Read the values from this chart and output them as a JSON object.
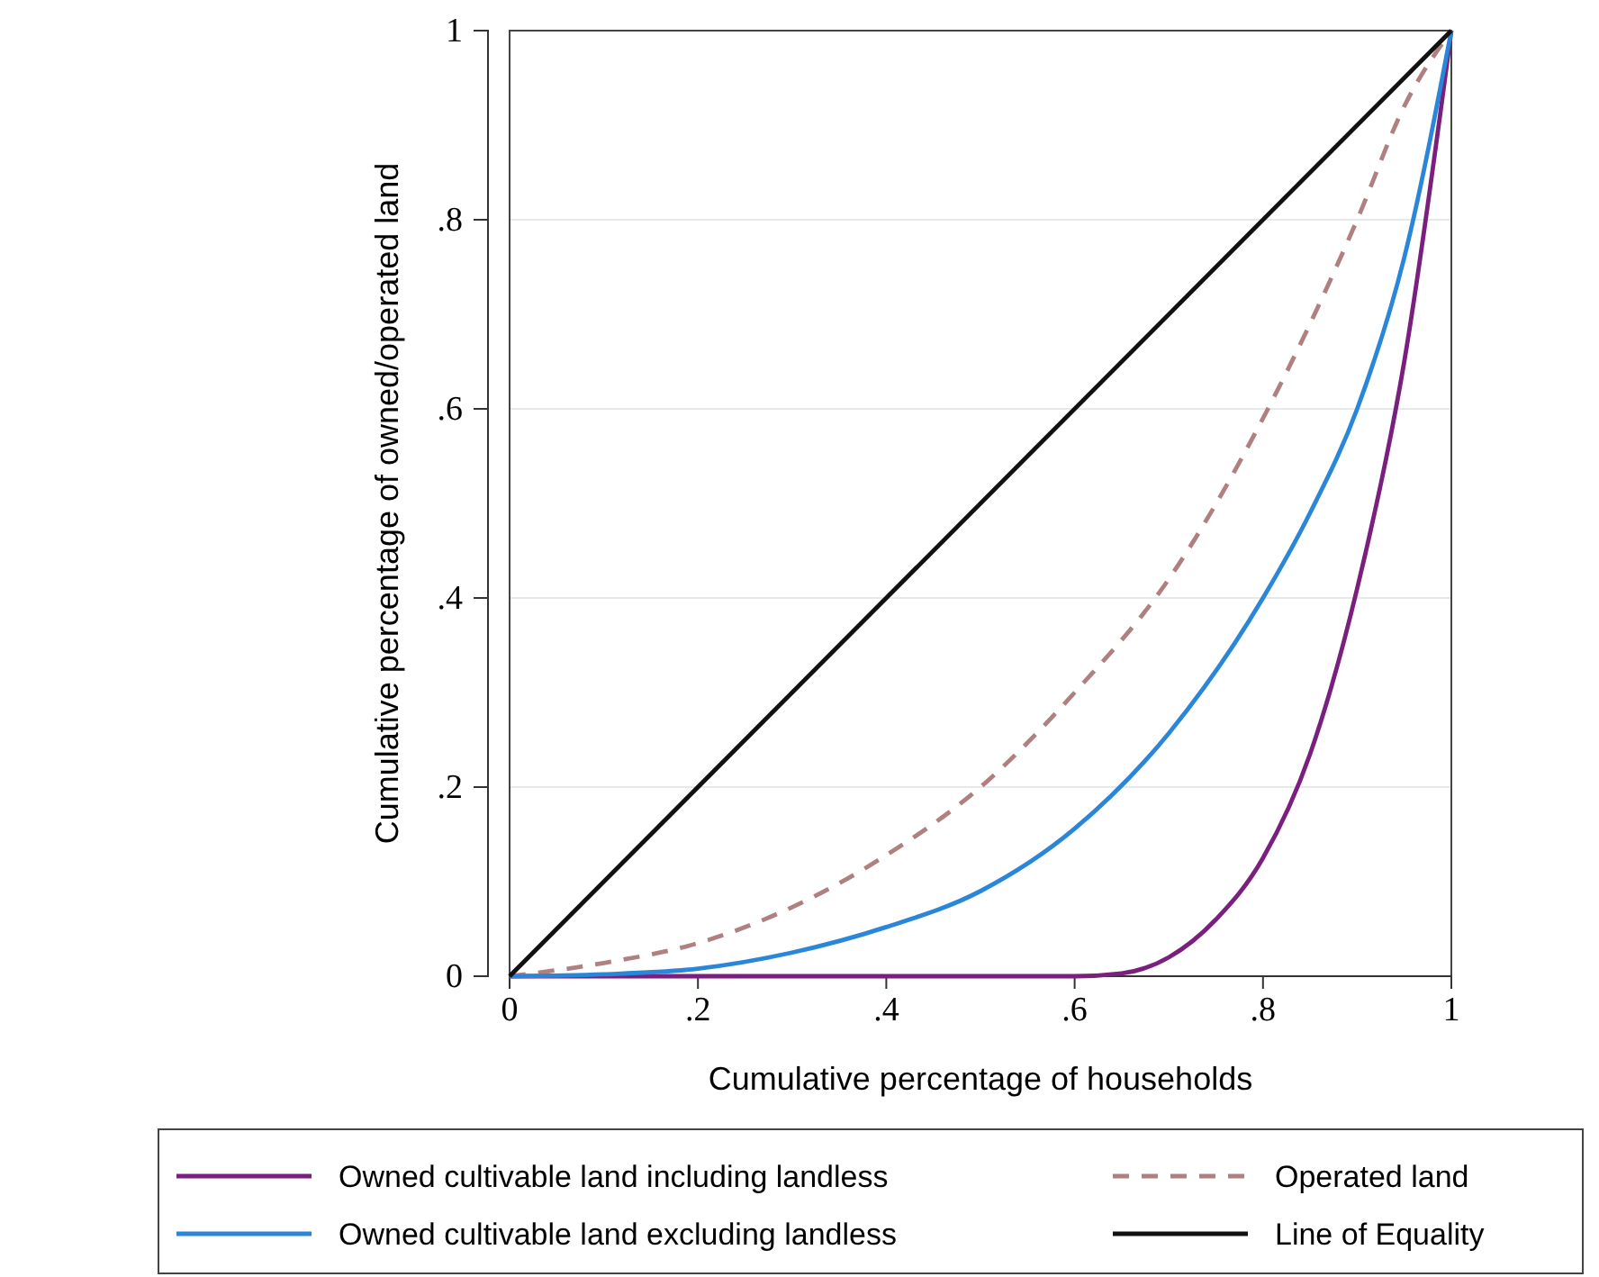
{
  "chart_data": {
    "type": "line",
    "xlabel": "Cumulative percentage of households",
    "ylabel": "Cumulative percentage of owned/operated land",
    "xlim": [
      0,
      1
    ],
    "ylim": [
      0,
      1
    ],
    "xticks": [
      0,
      {
        "value": 0.2,
        "label": ".2"
      },
      {
        "value": 0.4,
        "label": ".4"
      },
      {
        "value": 0.6,
        "label": ".6"
      },
      {
        "value": 0.8,
        "label": ".8"
      },
      1
    ],
    "yticks": [
      0,
      {
        "value": 0.2,
        "label": ".2"
      },
      {
        "value": 0.4,
        "label": ".4"
      },
      {
        "value": 0.6,
        "label": ".6"
      },
      {
        "value": 0.8,
        "label": ".8"
      },
      1
    ],
    "grid": "y",
    "legend": "bottom",
    "series": [
      {
        "name": "Owned cultivable land including landless",
        "color": "#7b1f7f",
        "line_style": "solid",
        "x": [
          0,
          0.6,
          0.65,
          0.7,
          0.75,
          0.8,
          0.85,
          0.9,
          0.95,
          1
        ],
        "values": [
          0,
          0,
          0.003,
          0.02,
          0.06,
          0.125,
          0.235,
          0.41,
          0.65,
          1
        ]
      },
      {
        "name": "Operated land",
        "color": "#b08080",
        "line_style": "dashed",
        "x": [
          0,
          0.1,
          0.2,
          0.3,
          0.4,
          0.5,
          0.6,
          0.7,
          0.8,
          0.85,
          0.9,
          0.95,
          1
        ],
        "values": [
          0,
          0.014,
          0.035,
          0.073,
          0.128,
          0.2,
          0.3,
          0.42,
          0.59,
          0.69,
          0.8,
          0.92,
          1
        ]
      },
      {
        "name": "Owned cultivable land excluding landless",
        "color": "#2a86d8",
        "line_style": "solid",
        "x": [
          0,
          0.1,
          0.2,
          0.3,
          0.4,
          0.5,
          0.6,
          0.7,
          0.8,
          0.85,
          0.9,
          0.95,
          1
        ],
        "values": [
          0,
          0.002,
          0.008,
          0.025,
          0.052,
          0.09,
          0.156,
          0.257,
          0.4,
          0.49,
          0.6,
          0.76,
          1
        ]
      },
      {
        "name": "Line of Equality",
        "color": "#111111",
        "line_style": "solid",
        "x": [
          0,
          1
        ],
        "values": [
          0,
          1
        ]
      }
    ]
  }
}
